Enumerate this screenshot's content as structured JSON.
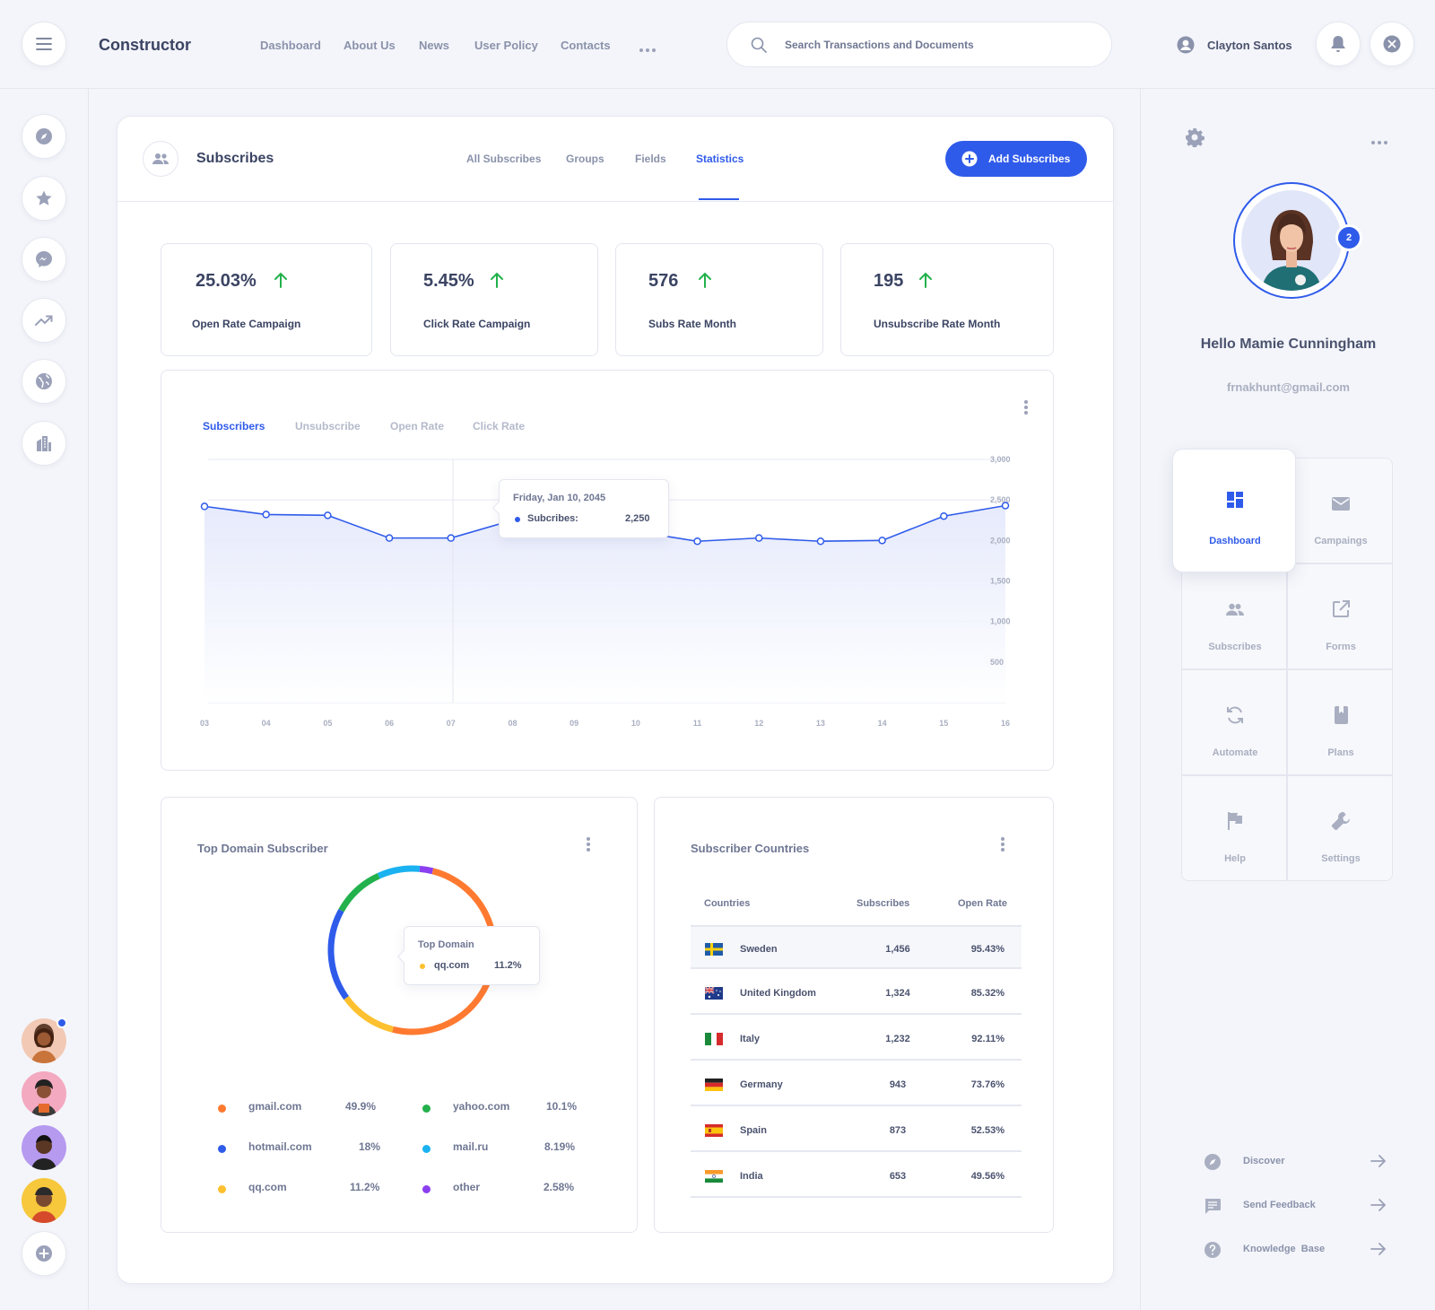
{
  "app": {
    "brand": "Constructor"
  },
  "nav": {
    "links": [
      "Dashboard",
      "About Us",
      "News",
      "User Policy",
      "Contacts"
    ]
  },
  "search": {
    "placeholder": "Search Transactions and Documents"
  },
  "user": {
    "name": "Clayton Santos"
  },
  "subscribes": {
    "title": "Subscribes",
    "tabs": [
      "All Subscribes",
      "Groups",
      "Fields",
      "Statistics"
    ],
    "active_tab": "Statistics",
    "add_button": "Add Subscribes"
  },
  "stats": [
    {
      "value": "25.03%",
      "label": "Open Rate Campaign"
    },
    {
      "value": "5.45%",
      "label": "Click Rate Campaign"
    },
    {
      "value": "576",
      "label": "Subs Rate Month"
    },
    {
      "value": "195",
      "label": "Unsubscribe Rate Month"
    }
  ],
  "chart_tabs": [
    "Subscribers",
    "Unsubscribe",
    "Open Rate",
    "Click Rate"
  ],
  "chart_data": {
    "type": "area",
    "x": [
      "03",
      "04",
      "05",
      "06",
      "07",
      "08",
      "09",
      "10",
      "11",
      "12",
      "13",
      "14",
      "15",
      "16"
    ],
    "series": [
      {
        "name": "Subcribes",
        "values": [
          2420,
          2320,
          2310,
          2030,
          2030,
          2250,
          2300,
          2110,
          1990,
          2030,
          1990,
          2000,
          2300,
          2430
        ]
      }
    ],
    "ylim": [
      0,
      3000
    ],
    "yticks": [
      "3,000",
      "2,500",
      "2,000",
      "1,500",
      "1,000",
      "500"
    ],
    "grid": true,
    "tooltip": {
      "date": "Friday, Jan 10, 2045",
      "label": "Subcribes:",
      "value": "2,250"
    },
    "color": "#2f5bea"
  },
  "domains": {
    "title": "Top Domain Subscriber",
    "tooltip": {
      "title": "Top Domain",
      "name": "qq.com",
      "value": "11.2%"
    },
    "items": [
      {
        "name": "gmail.com",
        "value": "49.9%",
        "pct": 49.9,
        "color": "#ff7a30"
      },
      {
        "name": "yahoo.com",
        "value": "10.1%",
        "pct": 10.1,
        "color": "#22b14c"
      },
      {
        "name": "hotmail.com",
        "value": "18%",
        "pct": 18,
        "color": "#2f5bea"
      },
      {
        "name": "mail.ru",
        "value": "8.19%",
        "pct": 8.19,
        "color": "#1ab2f0"
      },
      {
        "name": "qq.com",
        "value": "11.2%",
        "pct": 11.2,
        "color": "#fdc02f"
      },
      {
        "name": "other",
        "value": "2.58%",
        "pct": 2.58,
        "color": "#8b3ff0"
      }
    ]
  },
  "countries": {
    "title": "Subscriber Countries",
    "headers": [
      "Countries",
      "Subscribes",
      "Open Rate"
    ],
    "rows": [
      {
        "flag": "sweden-flag-icon",
        "name": "Sweden",
        "subs": "1,456",
        "rate": "95.43%"
      },
      {
        "flag": "uk-flag-icon",
        "name": "United Kingdom",
        "subs": "1,324",
        "rate": "85.32%"
      },
      {
        "flag": "italy-flag-icon",
        "name": "Italy",
        "subs": "1,232",
        "rate": "92.11%"
      },
      {
        "flag": "germany-flag-icon",
        "name": "Germany",
        "subs": "943",
        "rate": "73.76%"
      },
      {
        "flag": "spain-flag-icon",
        "name": "Spain",
        "subs": "873",
        "rate": "52.53%"
      },
      {
        "flag": "india-flag-icon",
        "name": "India",
        "subs": "653",
        "rate": "49.56%"
      }
    ]
  },
  "profile": {
    "greeting": "Hello Mamie Cunningham",
    "email": "frnakhunt@gmail.com",
    "badge": "2"
  },
  "menu": {
    "items": [
      "Dashboard",
      "Campaings",
      "Subscribes",
      "Forms",
      "Automate",
      "Plans",
      "Help",
      "Settings"
    ],
    "active": "Dashboard"
  },
  "footer_links": [
    "Discover",
    "Send Feedback",
    "Knowledge  Base"
  ],
  "colors": {
    "accent": "#2f5bea",
    "up_arrow": "#22b14c"
  }
}
